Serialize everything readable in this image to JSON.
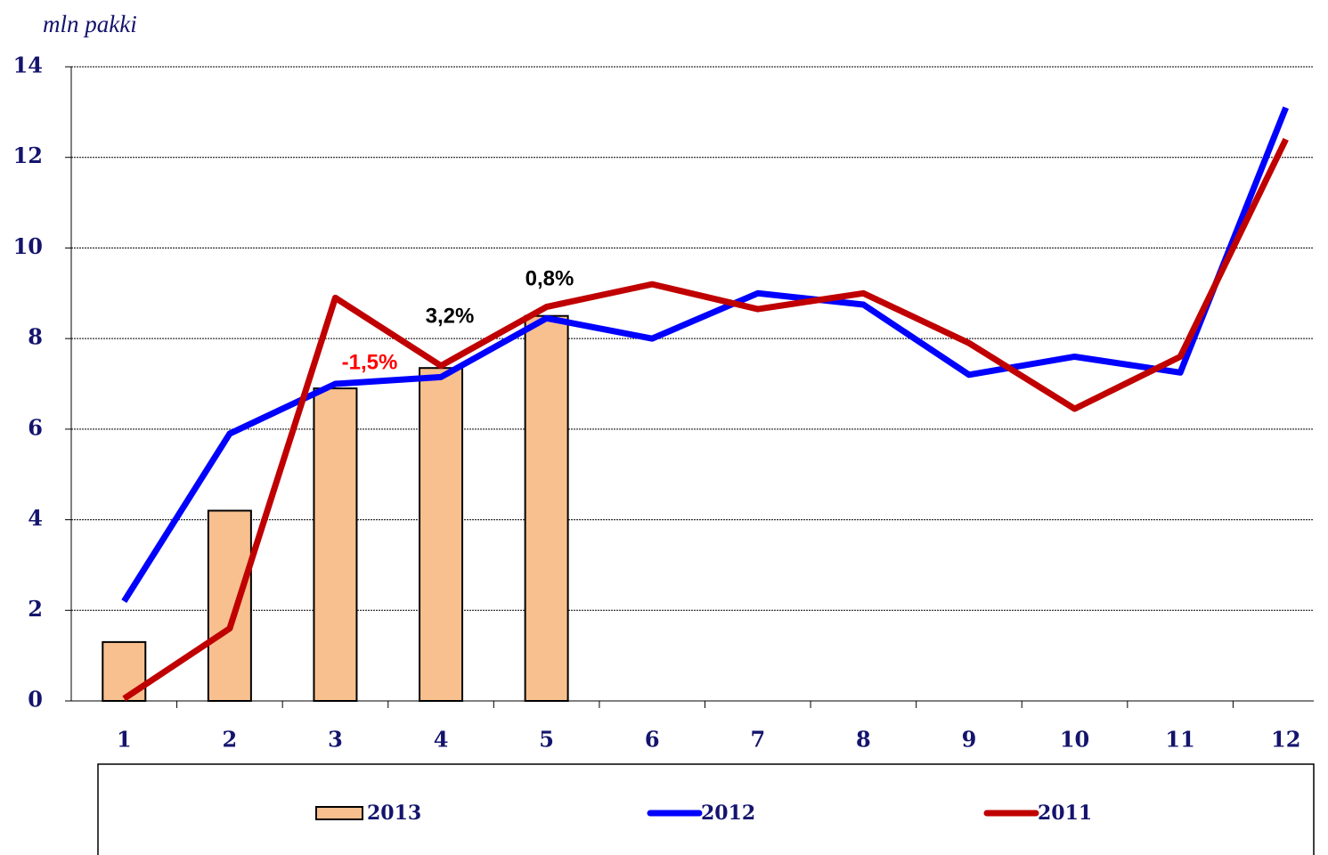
{
  "chart_data": {
    "type": "bar-line",
    "y_label": "mln pakki",
    "categories": [
      "1",
      "2",
      "3",
      "4",
      "5",
      "6",
      "7",
      "8",
      "9",
      "10",
      "11",
      "12"
    ],
    "series": [
      {
        "name": "2013",
        "type": "bar",
        "color": "#f9c08f",
        "values": [
          1.3,
          4.2,
          6.9,
          7.35,
          8.5,
          null,
          null,
          null,
          null,
          null,
          null,
          null
        ]
      },
      {
        "name": "2012",
        "type": "line",
        "color": "#0000ff",
        "values": [
          2.2,
          5.9,
          7.0,
          7.15,
          8.45,
          8.0,
          9.0,
          8.75,
          7.2,
          7.6,
          7.25,
          13.1
        ]
      },
      {
        "name": "2011",
        "type": "line",
        "color": "#c00000",
        "values": [
          0.05,
          1.6,
          8.9,
          7.4,
          8.7,
          9.2,
          8.65,
          9.0,
          7.9,
          6.45,
          7.6,
          12.4
        ]
      }
    ],
    "annotations": [
      {
        "text": "-1,5%",
        "color": "#ff0000"
      },
      {
        "text": "3,2%",
        "color": "#000000"
      },
      {
        "text": "0,8%",
        "color": "#000000"
      }
    ],
    "ylim": [
      0,
      14
    ],
    "yticks": [
      0,
      2,
      4,
      6,
      8,
      10,
      12,
      14
    ],
    "grid": true
  }
}
